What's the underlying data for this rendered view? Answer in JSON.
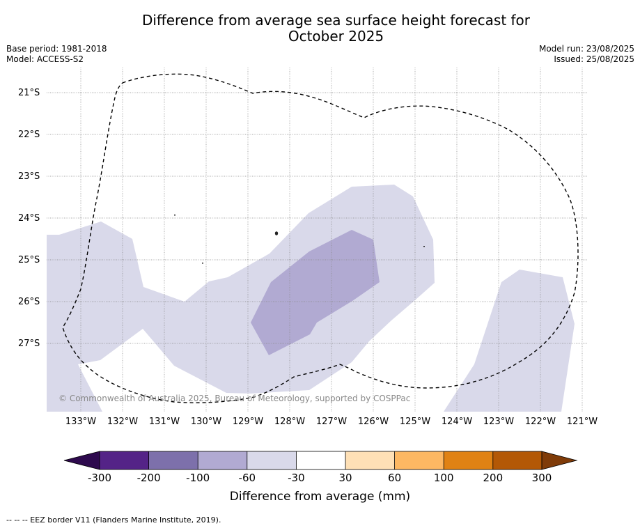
{
  "title_line1": "Difference from average sea surface height forecast for",
  "title_line2": "October 2025",
  "meta_left": {
    "base_period": "Base period: 1981-2018",
    "model": "Model: ACCESS-S2"
  },
  "meta_right": {
    "model_run": "Model run: 23/08/2025",
    "issued": "Issued: 25/08/2025"
  },
  "map": {
    "lat_labels": [
      "21°S",
      "22°S",
      "23°S",
      "24°S",
      "25°S",
      "26°S",
      "27°S"
    ],
    "lon_labels": [
      "133°W",
      "132°W",
      "131°W",
      "130°W",
      "129°W",
      "128°W",
      "127°W",
      "126°W",
      "125°W",
      "124°W",
      "123°W",
      "122°W",
      "121°W"
    ],
    "copyright": "© Commonwealth of Australia 2025, Bureau of Meteorology, supported by COSPPac",
    "colors": {
      "-60_to_-30": "#d9d9ea",
      "-100_to_-60": "#b1aad2"
    }
  },
  "colorbar": {
    "title": "Difference from average (mm)",
    "tick_labels": [
      "-300",
      "-200",
      "-100",
      "-60",
      "-30",
      "30",
      "60",
      "100",
      "200",
      "300"
    ],
    "colors": [
      "#2e0a4e",
      "#542387",
      "#7d70ab",
      "#b1aad2",
      "#d9d9ea",
      "#ffffff",
      "#fee0b6",
      "#fdb863",
      "#e08214",
      "#b35806",
      "#7f3b08"
    ]
  },
  "footnote": "--  --  -- EEZ border V11 (Flanders Marine Institute, 2019)."
}
